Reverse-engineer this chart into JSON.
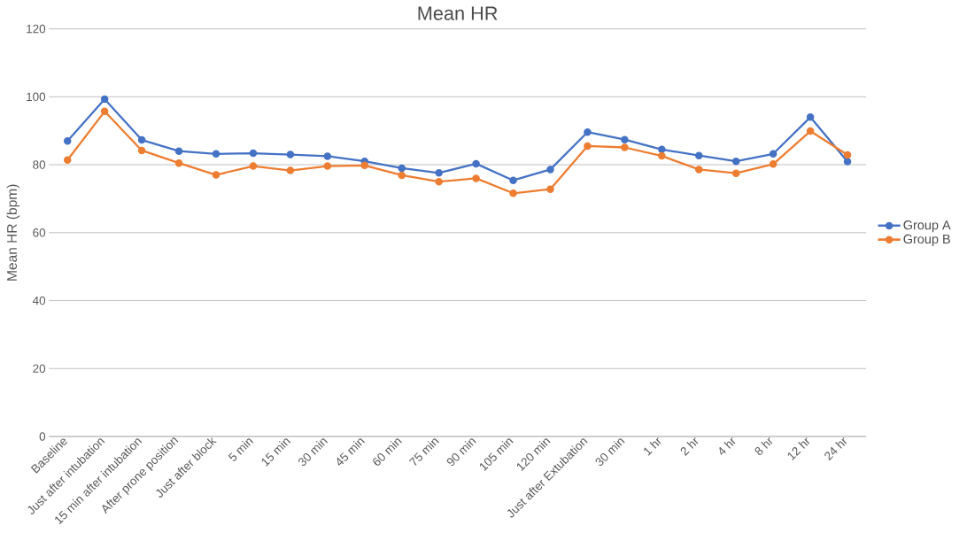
{
  "chart_data": {
    "type": "line",
    "title": "Mean HR",
    "ylabel": "Mean HR (bpm)",
    "categories": [
      "Baseline",
      "Just after intubation",
      "15 min after intubation",
      "After prone position",
      "Just after block",
      "5 min",
      "15 min",
      "30 min",
      "45 min",
      "60 min",
      "75 min",
      "90 min",
      "105 min",
      "120 min",
      "Just after Extubation",
      "30 min",
      "1 hr",
      "2 hr",
      "4 hr",
      "8 hr",
      "12 hr",
      "24 hr"
    ],
    "series": [
      {
        "name": "Group A",
        "color": "#4472c4",
        "values": [
          87,
          99.3,
          87.3,
          84,
          83.2,
          83.4,
          83,
          82.5,
          81,
          79,
          77.6,
          80.3,
          75.4,
          78.6,
          89.6,
          87.4,
          84.5,
          82.7,
          81,
          83.2,
          94,
          80.9
        ]
      },
      {
        "name": "Group B",
        "color": "#ed7d31",
        "values": [
          81.4,
          95.7,
          84.2,
          80.5,
          77,
          79.6,
          78.3,
          79.6,
          79.8,
          76.9,
          75,
          76,
          71.6,
          72.8,
          85.5,
          85.1,
          82.6,
          78.6,
          77.5,
          80.2,
          89.9,
          82.9
        ]
      }
    ],
    "ylim": [
      0,
      120
    ],
    "yticks": [
      0,
      20,
      40,
      60,
      80,
      100,
      120
    ],
    "grid": "y",
    "legend": "right",
    "marker": "circle",
    "line_style": "solid"
  }
}
